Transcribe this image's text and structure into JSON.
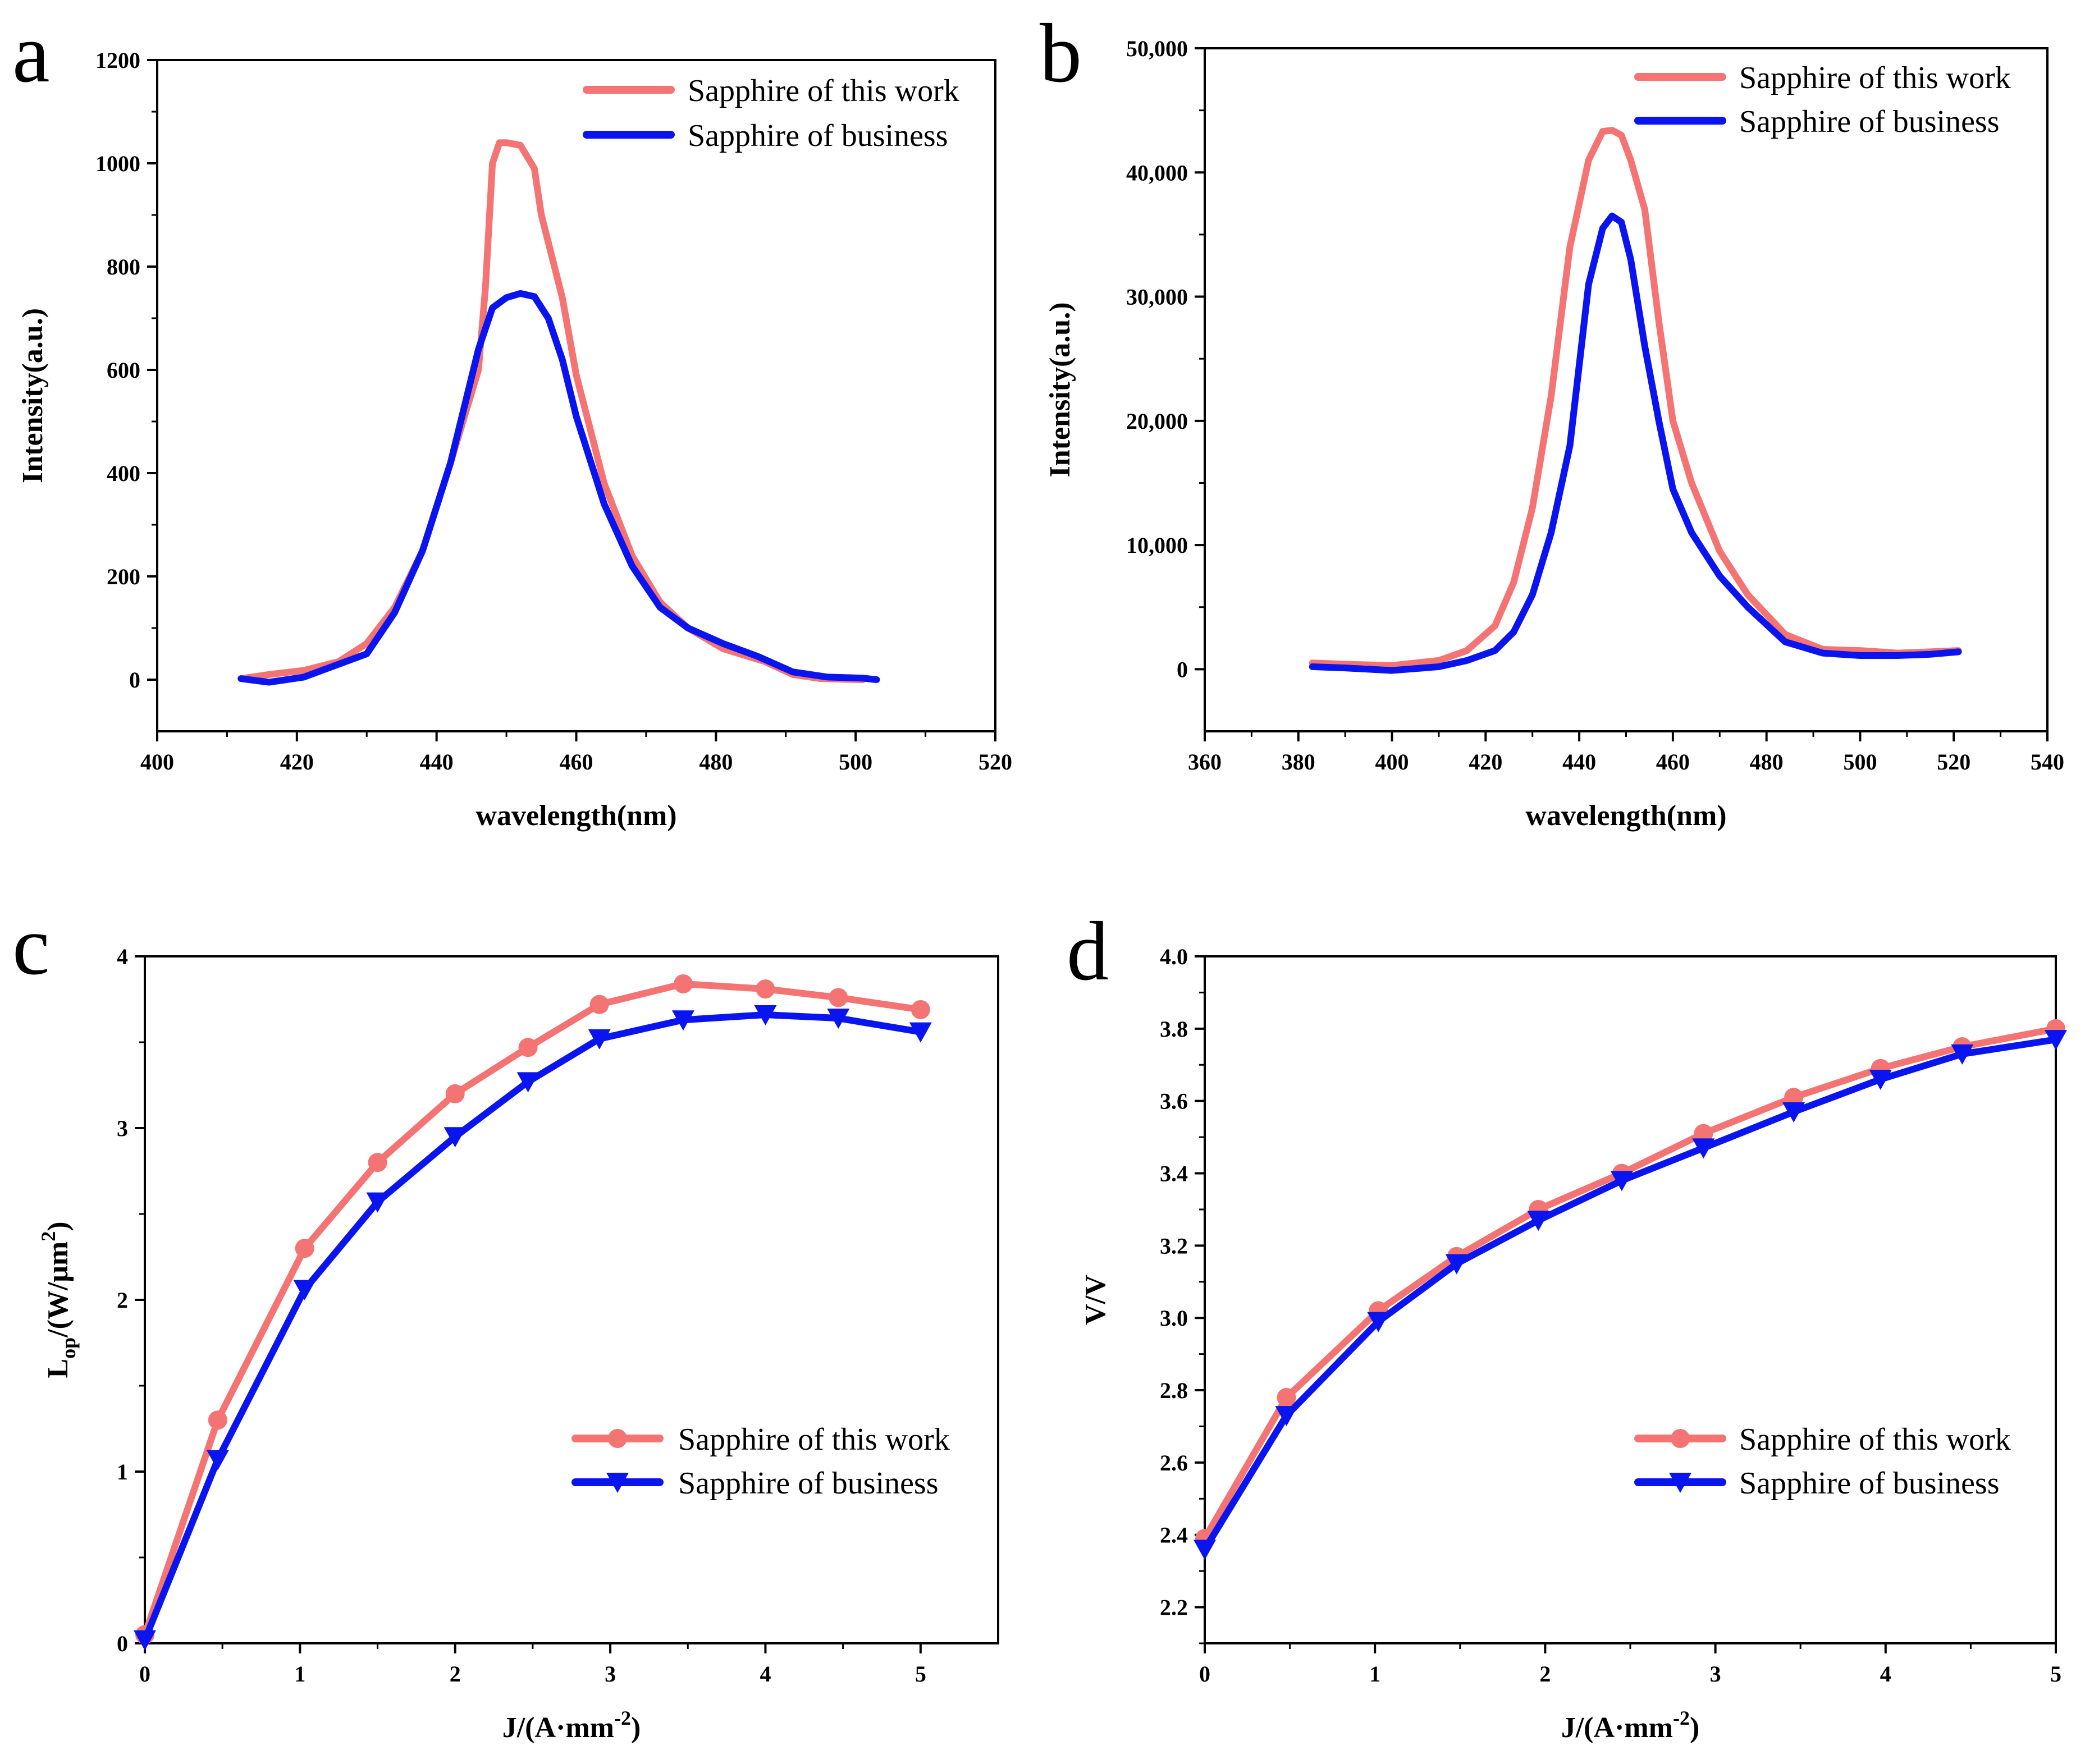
{
  "colors": {
    "this_work": "#f47373",
    "business": "#0a14ee",
    "axis": "#000000"
  },
  "chart_data": [
    {
      "panel": "a",
      "type": "line",
      "xlabel": "wavelength(nm)",
      "ylabel": "Intensity(a.u.)",
      "xlim": [
        400,
        520
      ],
      "ylim": [
        -100,
        1200
      ],
      "xticks": [
        400,
        420,
        440,
        460,
        480,
        500,
        520
      ],
      "xtick_labels": [
        "400",
        "420",
        "440",
        "460",
        "480",
        "500",
        "520"
      ],
      "yticks": [
        0,
        200,
        400,
        600,
        800,
        1000,
        1200
      ],
      "ytick_labels": [
        "0",
        "200",
        "400",
        "600",
        "800",
        "1000",
        "1200"
      ],
      "legend": [
        "Sapphire of this work",
        "Sapphire of business"
      ],
      "series": [
        {
          "name": "Sapphire of this work",
          "color": "#f47373",
          "marker": "none",
          "x": [
            412,
            416,
            421,
            426,
            430,
            434,
            438,
            442,
            446,
            447,
            448,
            449,
            450,
            452,
            454,
            455,
            458,
            460,
            464,
            468,
            472,
            476,
            481,
            487,
            491,
            495,
            501
          ],
          "y": [
            2,
            10,
            18,
            35,
            70,
            140,
            250,
            420,
            600,
            760,
            1000,
            1040,
            1040,
            1035,
            990,
            900,
            740,
            590,
            380,
            240,
            150,
            100,
            60,
            35,
            10,
            2,
            0
          ]
        },
        {
          "name": "Sapphire of business",
          "color": "#0a14ee",
          "marker": "none",
          "x": [
            412,
            416,
            421,
            426,
            430,
            434,
            438,
            442,
            446,
            448,
            450,
            452,
            454,
            456,
            458,
            460,
            464,
            468,
            472,
            476,
            481,
            486,
            491,
            496,
            501,
            503
          ],
          "y": [
            2,
            -5,
            5,
            30,
            50,
            130,
            250,
            420,
            640,
            720,
            740,
            748,
            742,
            700,
            620,
            510,
            340,
            220,
            140,
            100,
            70,
            45,
            15,
            5,
            3,
            0
          ]
        }
      ]
    },
    {
      "panel": "b",
      "type": "line",
      "xlabel": "wavelength(nm)",
      "ylabel": "Intensity(a.u.)",
      "xlim": [
        360,
        540
      ],
      "ylim": [
        -5000,
        50000
      ],
      "xticks": [
        360,
        380,
        400,
        420,
        440,
        460,
        480,
        500,
        520,
        540
      ],
      "xtick_labels": [
        "360",
        "380",
        "400",
        "420",
        "440",
        "460",
        "480",
        "500",
        "520",
        "540"
      ],
      "yticks": [
        0,
        10000,
        20000,
        30000,
        40000,
        50000
      ],
      "ytick_labels": [
        "0",
        "10,000",
        "20,000",
        "30,000",
        "40,000",
        "50,000"
      ],
      "legend": [
        "Sapphire of this work",
        "Sapphire of business"
      ],
      "series": [
        {
          "name": "Sapphire of this work",
          "color": "#f47373",
          "marker": "none",
          "x": [
            383,
            390,
            400,
            410,
            416,
            422,
            426,
            430,
            434,
            438,
            442,
            445,
            447,
            449,
            451,
            454,
            457,
            460,
            464,
            470,
            476,
            484,
            492,
            500,
            508,
            515,
            521
          ],
          "y": [
            500,
            400,
            300,
            700,
            1500,
            3500,
            7000,
            13000,
            22000,
            34000,
            41000,
            43300,
            43400,
            43000,
            41000,
            37000,
            28000,
            20000,
            15000,
            9500,
            6000,
            2800,
            1600,
            1500,
            1300,
            1400,
            1500
          ]
        },
        {
          "name": "Sapphire of business",
          "color": "#0a14ee",
          "marker": "none",
          "x": [
            383,
            390,
            400,
            410,
            416,
            422,
            426,
            430,
            434,
            438,
            442,
            445,
            447,
            449,
            451,
            454,
            457,
            460,
            464,
            470,
            476,
            484,
            492,
            500,
            508,
            515,
            521
          ],
          "y": [
            200,
            100,
            -100,
            200,
            700,
            1500,
            3000,
            6000,
            11000,
            18000,
            31000,
            35500,
            36500,
            36000,
            33000,
            26000,
            20000,
            14500,
            11000,
            7500,
            5000,
            2200,
            1300,
            1100,
            1100,
            1200,
            1400
          ]
        }
      ]
    },
    {
      "panel": "c",
      "type": "line",
      "xlabel": "J/(A·mm",
      "xlabel_sup": "-2",
      "xlabel_end": ")",
      "ylabel_main": "L",
      "ylabel_sub": "op",
      "ylabel_mid": "/(W/μm",
      "ylabel_sup": "2",
      "ylabel_end": ")",
      "xlim": [
        0,
        5.5
      ],
      "ylim": [
        0,
        4
      ],
      "xticks": [
        0,
        1,
        2,
        3,
        4,
        5
      ],
      "xtick_labels": [
        "0",
        "1",
        "2",
        "3",
        "4",
        "5"
      ],
      "yticks": [
        0,
        1,
        2,
        3,
        4
      ],
      "ytick_labels": [
        "0",
        "1",
        "2",
        "3",
        "4"
      ],
      "legend": [
        "Sapphire of this work",
        "Sapphire of business"
      ],
      "series": [
        {
          "name": "Sapphire of this work",
          "color": "#f47373",
          "marker": "circle",
          "x": [
            0,
            0.47,
            1.03,
            1.5,
            2.0,
            2.47,
            2.93,
            3.47,
            4.0,
            4.47,
            5.0
          ],
          "y": [
            0.05,
            1.3,
            2.3,
            2.8,
            3.2,
            3.47,
            3.72,
            3.84,
            3.81,
            3.76,
            3.69
          ]
        },
        {
          "name": "Sapphire of business",
          "color": "#0a14ee",
          "marker": "triangle-down",
          "x": [
            0,
            0.47,
            1.03,
            1.5,
            2.0,
            2.47,
            2.93,
            3.47,
            4.0,
            4.47,
            5.0
          ],
          "y": [
            0.02,
            1.07,
            2.06,
            2.57,
            2.95,
            3.27,
            3.52,
            3.63,
            3.66,
            3.64,
            3.56
          ]
        }
      ]
    },
    {
      "panel": "d",
      "type": "line",
      "xlabel": "J/(A·mm",
      "xlabel_sup": "-2",
      "xlabel_end": ")",
      "ylabel": "V/V",
      "xlim": [
        0,
        5
      ],
      "ylim": [
        2.1,
        4.0
      ],
      "xticks": [
        0,
        1,
        2,
        3,
        4,
        5
      ],
      "xtick_labels": [
        "0",
        "1",
        "2",
        "3",
        "4",
        "5"
      ],
      "yticks": [
        2.2,
        2.4,
        2.6,
        2.8,
        3.0,
        3.2,
        3.4,
        3.6,
        3.8,
        4.0
      ],
      "ytick_labels": [
        "2.2",
        "2.4",
        "2.6",
        "2.8",
        "3.0",
        "3.2",
        "3.4",
        "3.6",
        "3.8",
        "4.0"
      ],
      "legend": [
        "Sapphire of this work",
        "Sapphire of business"
      ],
      "series": [
        {
          "name": "Sapphire of this work",
          "color": "#f47373",
          "marker": "circle",
          "x": [
            0,
            0.48,
            1.02,
            1.48,
            1.96,
            2.45,
            2.93,
            3.46,
            3.97,
            4.45,
            5.0
          ],
          "y": [
            2.39,
            2.78,
            3.02,
            3.17,
            3.3,
            3.4,
            3.51,
            3.61,
            3.69,
            3.75,
            3.8
          ]
        },
        {
          "name": "Sapphire of business",
          "color": "#0a14ee",
          "marker": "triangle-down",
          "x": [
            0,
            0.48,
            1.02,
            1.48,
            1.96,
            2.45,
            2.93,
            3.46,
            3.97,
            4.45,
            5.0
          ],
          "y": [
            2.36,
            2.73,
            2.99,
            3.15,
            3.27,
            3.38,
            3.47,
            3.57,
            3.66,
            3.73,
            3.77
          ]
        }
      ]
    }
  ]
}
